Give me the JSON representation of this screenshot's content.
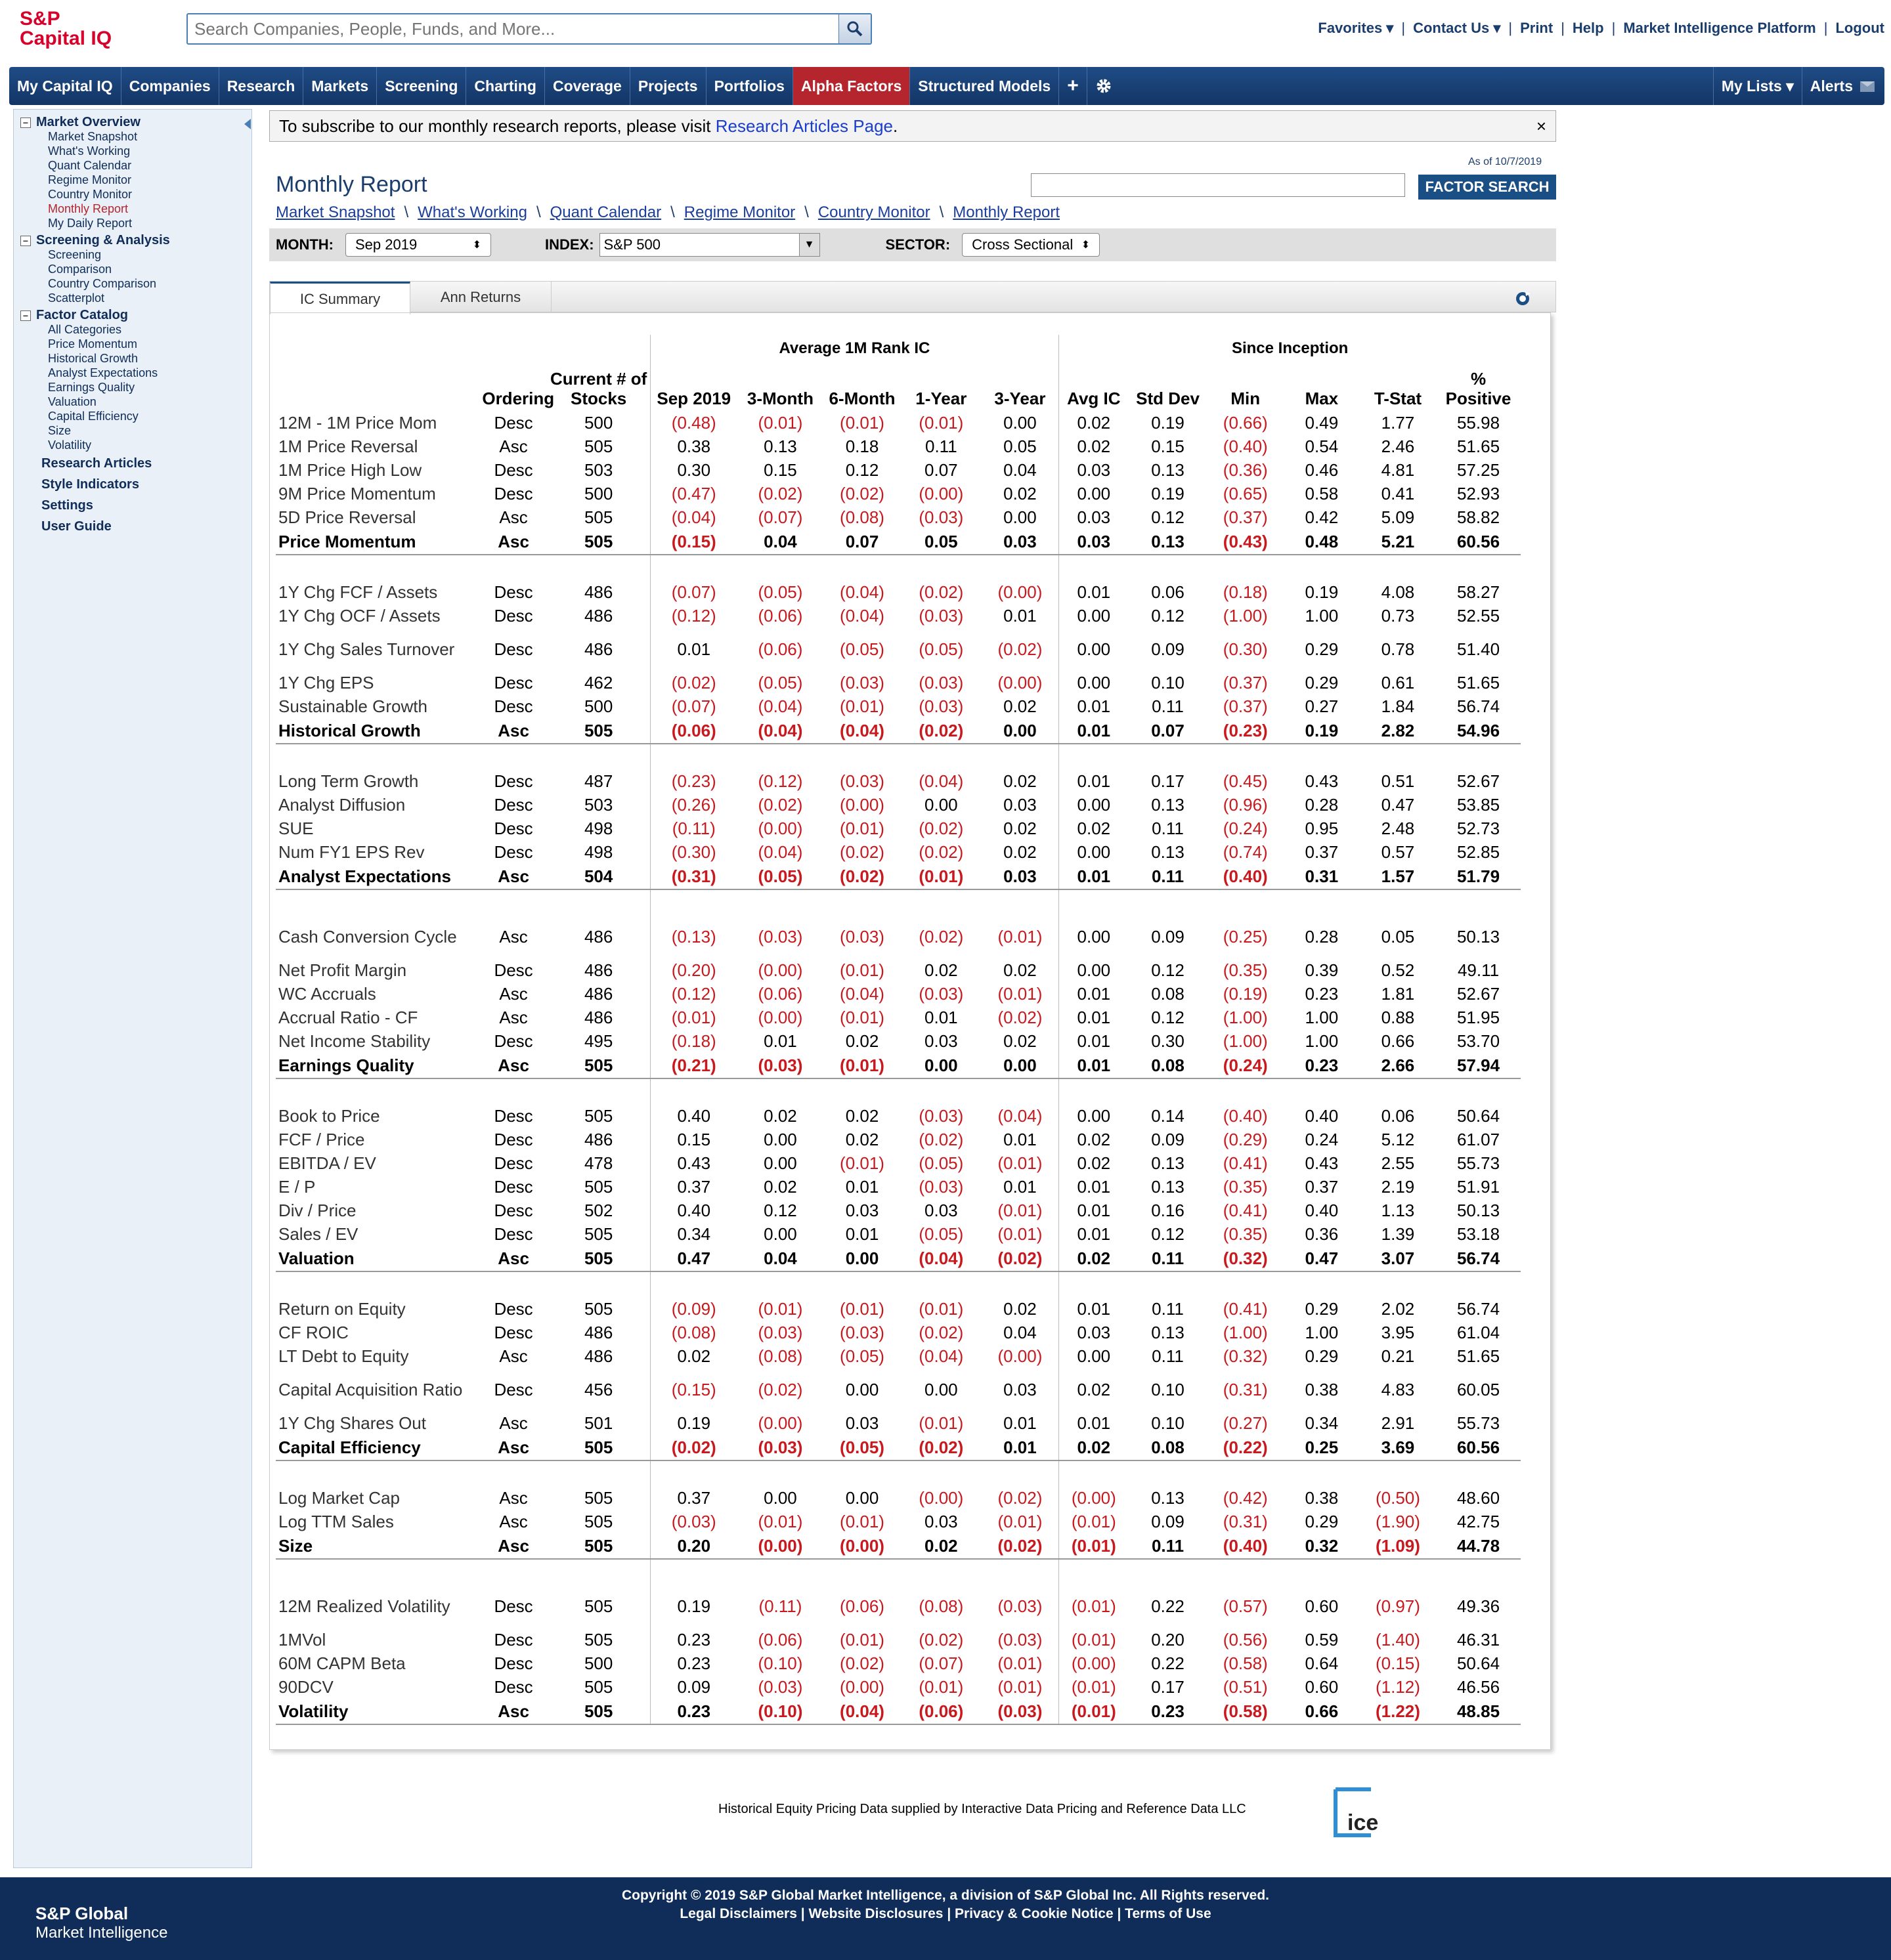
{
  "header": {
    "logo_line1": "S&P",
    "logo_line2": "Capital IQ",
    "search_placeholder": "Search Companies, People, Funds, and More...",
    "links": [
      "Favorites ▾",
      "Contact Us ▾",
      "Print",
      "Help",
      "Market Intelligence Platform",
      "Logout"
    ]
  },
  "nav": {
    "items": [
      "My Capital IQ",
      "Companies",
      "Research",
      "Markets",
      "Screening",
      "Charting",
      "Coverage",
      "Projects",
      "Portfolios",
      "Alpha Factors",
      "Structured Models"
    ],
    "active": "Alpha Factors",
    "right": [
      "My Lists ▾",
      "Alerts"
    ]
  },
  "sidebar": {
    "market_overview": {
      "title": "Market Overview",
      "items": [
        "Market Snapshot",
        "What's Working",
        "Quant Calendar",
        "Regime Monitor",
        "Country Monitor",
        "Monthly Report",
        "My Daily Report"
      ],
      "active": "Monthly Report"
    },
    "screening": {
      "title": "Screening & Analysis",
      "items": [
        "Screening",
        "Comparison",
        "Country Comparison",
        "Scatterplot"
      ]
    },
    "factor_catalog": {
      "title": "Factor Catalog",
      "items": [
        "All Categories",
        "Price Momentum",
        "Historical Growth",
        "Analyst Expectations",
        "Earnings Quality",
        "Valuation",
        "Capital Efficiency",
        "Size",
        "Volatility"
      ]
    },
    "links": [
      "Research Articles",
      "Style Indicators",
      "Settings",
      "User Guide"
    ]
  },
  "notice": {
    "text": "To subscribe to our monthly research reports, please visit ",
    "link": "Research Articles Page",
    "end": ".",
    "close": "×"
  },
  "page": {
    "title": "Monthly Report",
    "as_of": "As of 10/7/2019",
    "factor_search": "FACTOR SEARCH",
    "breadcrumb": [
      "Market Snapshot",
      "What's Working",
      "Quant Calendar",
      "Regime Monitor",
      "Country Monitor",
      "Monthly Report"
    ],
    "filters": {
      "month_label": "MONTH:",
      "month": "Sep 2019",
      "index_label": "INDEX:",
      "index": "S&P 500",
      "sector_label": "SECTOR:",
      "sector": "Cross Sectional"
    },
    "tabs": [
      "IC Summary",
      "Ann Returns"
    ]
  },
  "table": {
    "group_headers": {
      "avg": "Average 1M Rank IC",
      "since": "Since Inception"
    },
    "columns": [
      "Ordering",
      "Current # of Stocks",
      "Sep 2019",
      "3-Month",
      "6-Month",
      "1-Year",
      "3-Year",
      "Avg IC",
      "Std Dev",
      "Min",
      "Max",
      "T-Stat",
      "% Positive"
    ],
    "groups": [
      {
        "rows": [
          [
            "12M - 1M Price Mom",
            "Desc",
            "500",
            "(0.48)",
            "(0.01)",
            "(0.01)",
            "(0.01)",
            "0.00",
            "0.02",
            "0.19",
            "(0.66)",
            "0.49",
            "1.77",
            "55.98"
          ],
          [
            "1M Price Reversal",
            "Asc",
            "505",
            "0.38",
            "0.13",
            "0.18",
            "0.11",
            "0.05",
            "0.02",
            "0.15",
            "(0.40)",
            "0.54",
            "2.46",
            "51.65"
          ],
          [
            "1M Price High Low",
            "Desc",
            "503",
            "0.30",
            "0.15",
            "0.12",
            "0.07",
            "0.04",
            "0.03",
            "0.13",
            "(0.36)",
            "0.46",
            "4.81",
            "57.25"
          ],
          [
            "9M Price Momentum",
            "Desc",
            "500",
            "(0.47)",
            "(0.02)",
            "(0.02)",
            "(0.00)",
            "0.02",
            "0.00",
            "0.19",
            "(0.65)",
            "0.58",
            "0.41",
            "52.93"
          ],
          [
            "5D Price Reversal",
            "Asc",
            "505",
            "(0.04)",
            "(0.07)",
            "(0.08)",
            "(0.03)",
            "0.00",
            "0.03",
            "0.12",
            "(0.37)",
            "0.42",
            "5.09",
            "58.82"
          ]
        ],
        "summary": [
          "Price Momentum",
          "Asc",
          "505",
          "(0.15)",
          "0.04",
          "0.07",
          "0.05",
          "0.03",
          "0.03",
          "0.13",
          "(0.43)",
          "0.48",
          "5.21",
          "60.56"
        ]
      },
      {
        "rows": [
          [
            "1Y Chg FCF / Assets",
            "Desc",
            "486",
            "(0.07)",
            "(0.05)",
            "(0.04)",
            "(0.02)",
            "(0.00)",
            "0.01",
            "0.06",
            "(0.18)",
            "0.19",
            "4.08",
            "58.27"
          ],
          [
            "1Y Chg OCF / Assets",
            "Desc",
            "486",
            "(0.12)",
            "(0.06)",
            "(0.04)",
            "(0.03)",
            "0.01",
            "0.00",
            "0.12",
            "(1.00)",
            "1.00",
            "0.73",
            "52.55"
          ],
          [
            "1Y Chg Sales Turnover",
            "Desc",
            "486",
            "0.01",
            "(0.06)",
            "(0.05)",
            "(0.05)",
            "(0.02)",
            "0.00",
            "0.09",
            "(0.30)",
            "0.29",
            "0.78",
            "51.40"
          ],
          [
            "1Y Chg EPS",
            "Desc",
            "462",
            "(0.02)",
            "(0.05)",
            "(0.03)",
            "(0.03)",
            "(0.00)",
            "0.00",
            "0.10",
            "(0.37)",
            "0.29",
            "0.61",
            "51.65"
          ],
          [
            "Sustainable Growth",
            "Desc",
            "500",
            "(0.07)",
            "(0.04)",
            "(0.01)",
            "(0.03)",
            "0.02",
            "0.01",
            "0.11",
            "(0.37)",
            "0.27",
            "1.84",
            "56.74"
          ]
        ],
        "summary": [
          "Historical Growth",
          "Asc",
          "505",
          "(0.06)",
          "(0.04)",
          "(0.04)",
          "(0.02)",
          "0.00",
          "0.01",
          "0.07",
          "(0.23)",
          "0.19",
          "2.82",
          "54.96"
        ]
      },
      {
        "rows": [
          [
            "Long Term Growth",
            "Desc",
            "487",
            "(0.23)",
            "(0.12)",
            "(0.03)",
            "(0.04)",
            "0.02",
            "0.01",
            "0.17",
            "(0.45)",
            "0.43",
            "0.51",
            "52.67"
          ],
          [
            "Analyst Diffusion",
            "Desc",
            "503",
            "(0.26)",
            "(0.02)",
            "(0.00)",
            "0.00",
            "0.03",
            "0.00",
            "0.13",
            "(0.96)",
            "0.28",
            "0.47",
            "53.85"
          ],
          [
            "SUE",
            "Desc",
            "498",
            "(0.11)",
            "(0.00)",
            "(0.01)",
            "(0.02)",
            "0.02",
            "0.02",
            "0.11",
            "(0.24)",
            "0.95",
            "2.48",
            "52.73"
          ],
          [
            "Num FY1 EPS Rev",
            "Desc",
            "498",
            "(0.30)",
            "(0.04)",
            "(0.02)",
            "(0.02)",
            "0.02",
            "0.00",
            "0.13",
            "(0.74)",
            "0.37",
            "0.57",
            "52.85"
          ]
        ],
        "summary": [
          "Analyst Expectations",
          "Asc",
          "504",
          "(0.31)",
          "(0.05)",
          "(0.02)",
          "(0.01)",
          "0.03",
          "0.01",
          "0.11",
          "(0.40)",
          "0.31",
          "1.57",
          "51.79"
        ]
      },
      {
        "rows": [
          [
            "Cash Conversion Cycle",
            "Asc",
            "486",
            "(0.13)",
            "(0.03)",
            "(0.03)",
            "(0.02)",
            "(0.01)",
            "0.00",
            "0.09",
            "(0.25)",
            "0.28",
            "0.05",
            "50.13"
          ],
          [
            "Net Profit Margin",
            "Desc",
            "486",
            "(0.20)",
            "(0.00)",
            "(0.01)",
            "0.02",
            "0.02",
            "0.00",
            "0.12",
            "(0.35)",
            "0.39",
            "0.52",
            "49.11"
          ],
          [
            "WC Accruals",
            "Asc",
            "486",
            "(0.12)",
            "(0.06)",
            "(0.04)",
            "(0.03)",
            "(0.01)",
            "0.01",
            "0.08",
            "(0.19)",
            "0.23",
            "1.81",
            "52.67"
          ],
          [
            "Accrual Ratio - CF",
            "Asc",
            "486",
            "(0.01)",
            "(0.00)",
            "(0.01)",
            "0.01",
            "(0.02)",
            "0.01",
            "0.12",
            "(1.00)",
            "1.00",
            "0.88",
            "51.95"
          ],
          [
            "Net Income Stability",
            "Desc",
            "495",
            "(0.18)",
            "0.01",
            "0.02",
            "0.03",
            "0.02",
            "0.01",
            "0.30",
            "(1.00)",
            "1.00",
            "0.66",
            "53.70"
          ]
        ],
        "summary": [
          "Earnings Quality",
          "Asc",
          "505",
          "(0.21)",
          "(0.03)",
          "(0.01)",
          "0.00",
          "0.00",
          "0.01",
          "0.08",
          "(0.24)",
          "0.23",
          "2.66",
          "57.94"
        ]
      },
      {
        "rows": [
          [
            "Book to Price",
            "Desc",
            "505",
            "0.40",
            "0.02",
            "0.02",
            "(0.03)",
            "(0.04)",
            "0.00",
            "0.14",
            "(0.40)",
            "0.40",
            "0.06",
            "50.64"
          ],
          [
            "FCF / Price",
            "Desc",
            "486",
            "0.15",
            "0.00",
            "0.02",
            "(0.02)",
            "0.01",
            "0.02",
            "0.09",
            "(0.29)",
            "0.24",
            "5.12",
            "61.07"
          ],
          [
            "EBITDA / EV",
            "Desc",
            "478",
            "0.43",
            "0.00",
            "(0.01)",
            "(0.05)",
            "(0.01)",
            "0.02",
            "0.13",
            "(0.41)",
            "0.43",
            "2.55",
            "55.73"
          ],
          [
            "E / P",
            "Desc",
            "505",
            "0.37",
            "0.02",
            "0.01",
            "(0.03)",
            "0.01",
            "0.01",
            "0.13",
            "(0.35)",
            "0.37",
            "2.19",
            "51.91"
          ],
          [
            "Div / Price",
            "Desc",
            "502",
            "0.40",
            "0.12",
            "0.03",
            "0.03",
            "(0.01)",
            "0.01",
            "0.16",
            "(0.41)",
            "0.40",
            "1.13",
            "50.13"
          ],
          [
            "Sales / EV",
            "Desc",
            "505",
            "0.34",
            "0.00",
            "0.01",
            "(0.05)",
            "(0.01)",
            "0.01",
            "0.12",
            "(0.35)",
            "0.36",
            "1.39",
            "53.18"
          ]
        ],
        "summary": [
          "Valuation",
          "Asc",
          "505",
          "0.47",
          "0.04",
          "0.00",
          "(0.04)",
          "(0.02)",
          "0.02",
          "0.11",
          "(0.32)",
          "0.47",
          "3.07",
          "56.74"
        ]
      },
      {
        "rows": [
          [
            "Return on Equity",
            "Desc",
            "505",
            "(0.09)",
            "(0.01)",
            "(0.01)",
            "(0.01)",
            "0.02",
            "0.01",
            "0.11",
            "(0.41)",
            "0.29",
            "2.02",
            "56.74"
          ],
          [
            "CF ROIC",
            "Desc",
            "486",
            "(0.08)",
            "(0.03)",
            "(0.03)",
            "(0.02)",
            "0.04",
            "0.03",
            "0.13",
            "(1.00)",
            "1.00",
            "3.95",
            "61.04"
          ],
          [
            "LT Debt to Equity",
            "Asc",
            "486",
            "0.02",
            "(0.08)",
            "(0.05)",
            "(0.04)",
            "(0.00)",
            "0.00",
            "0.11",
            "(0.32)",
            "0.29",
            "0.21",
            "51.65"
          ],
          [
            "Capital Acquisition Ratio",
            "Desc",
            "456",
            "(0.15)",
            "(0.02)",
            "0.00",
            "0.00",
            "0.03",
            "0.02",
            "0.10",
            "(0.31)",
            "0.38",
            "4.83",
            "60.05"
          ],
          [
            "1Y Chg Shares Out",
            "Asc",
            "501",
            "0.19",
            "(0.00)",
            "0.03",
            "(0.01)",
            "0.01",
            "0.01",
            "0.10",
            "(0.27)",
            "0.34",
            "2.91",
            "55.73"
          ]
        ],
        "summary": [
          "Capital Efficiency",
          "Asc",
          "505",
          "(0.02)",
          "(0.03)",
          "(0.05)",
          "(0.02)",
          "0.01",
          "0.02",
          "0.08",
          "(0.22)",
          "0.25",
          "3.69",
          "60.56"
        ]
      },
      {
        "rows": [
          [
            "Log Market Cap",
            "Asc",
            "505",
            "0.37",
            "0.00",
            "0.00",
            "(0.00)",
            "(0.02)",
            "(0.00)",
            "0.13",
            "(0.42)",
            "0.38",
            "(0.50)",
            "48.60"
          ],
          [
            "Log TTM Sales",
            "Asc",
            "505",
            "(0.03)",
            "(0.01)",
            "(0.01)",
            "0.03",
            "(0.01)",
            "(0.01)",
            "0.09",
            "(0.31)",
            "0.29",
            "(1.90)",
            "42.75"
          ]
        ],
        "summary": [
          "Size",
          "Asc",
          "505",
          "0.20",
          "(0.00)",
          "(0.00)",
          "0.02",
          "(0.02)",
          "(0.01)",
          "0.11",
          "(0.40)",
          "0.32",
          "(1.09)",
          "44.78"
        ]
      },
      {
        "rows": [
          [
            "12M Realized Volatility",
            "Desc",
            "505",
            "0.19",
            "(0.11)",
            "(0.06)",
            "(0.08)",
            "(0.03)",
            "(0.01)",
            "0.22",
            "(0.57)",
            "0.60",
            "(0.97)",
            "49.36"
          ],
          [
            "1MVol",
            "Desc",
            "505",
            "0.23",
            "(0.06)",
            "(0.01)",
            "(0.02)",
            "(0.03)",
            "(0.01)",
            "0.20",
            "(0.56)",
            "0.59",
            "(1.40)",
            "46.31"
          ],
          [
            "60M CAPM Beta",
            "Desc",
            "500",
            "0.23",
            "(0.10)",
            "(0.02)",
            "(0.07)",
            "(0.01)",
            "(0.00)",
            "0.22",
            "(0.58)",
            "0.64",
            "(0.15)",
            "50.64"
          ],
          [
            "90DCV",
            "Desc",
            "505",
            "0.09",
            "(0.03)",
            "(0.00)",
            "(0.01)",
            "(0.01)",
            "(0.01)",
            "0.17",
            "(0.51)",
            "0.60",
            "(1.12)",
            "46.56"
          ]
        ],
        "summary": [
          "Volatility",
          "Asc",
          "505",
          "0.23",
          "(0.10)",
          "(0.04)",
          "(0.06)",
          "(0.03)",
          "(0.01)",
          "0.23",
          "(0.58)",
          "0.66",
          "(1.22)",
          "48.85"
        ]
      }
    ]
  },
  "footer": {
    "attribution": "Historical Equity Pricing Data supplied by Interactive Data Pricing and Reference Data LLC",
    "ice_logo": "ice",
    "copyright": "Copyright © 2019 S&P Global Market Intelligence, a division of S&P Global Inc. All Rights reserved.",
    "links": [
      "Legal Disclaimers",
      "Website Disclosures",
      "Privacy & Cookie Notice",
      "Terms of Use"
    ],
    "brand1": "S&P Global",
    "brand2": "Market Intelligence"
  }
}
